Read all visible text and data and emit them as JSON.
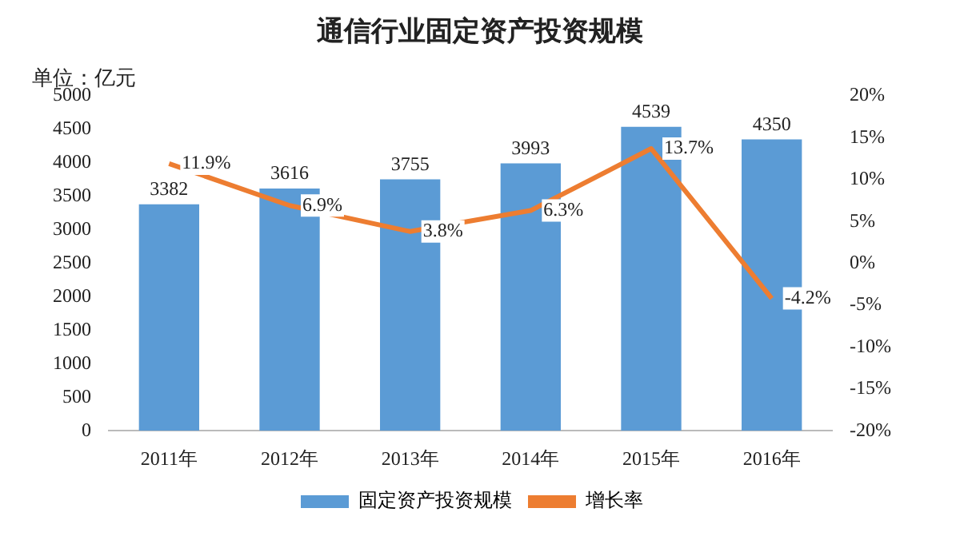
{
  "chart_data": {
    "type": "bar",
    "title": "通信行业固定资产投资规模",
    "ylabel": "单位：亿元",
    "categories": [
      "2011年",
      "2012年",
      "2013年",
      "2014年",
      "2015年",
      "2016年"
    ],
    "series": [
      {
        "name": "固定资产投资规模",
        "color": "#5b9bd5",
        "values": [
          3382,
          3616,
          3755,
          3993,
          4539,
          4350
        ],
        "value_labels": [
          "3382",
          "3616",
          "3755",
          "3993",
          "4539",
          "4350"
        ]
      },
      {
        "name": "增长率",
        "type": "line",
        "axis": "y2",
        "color": "#ed7d31",
        "values": [
          11.9,
          6.9,
          3.8,
          6.3,
          13.7,
          -4.2
        ],
        "value_labels": [
          "11.9%",
          "6.9%",
          "3.8%",
          "6.3%",
          "13.7%",
          "-4.2%"
        ]
      }
    ],
    "ylim": [
      0,
      5000
    ],
    "yticks": [
      0,
      500,
      1000,
      1500,
      2000,
      2500,
      3000,
      3500,
      4000,
      4500,
      5000
    ],
    "y2lim": [
      -20,
      20
    ],
    "y2ticks": [
      {
        "value": -20,
        "label": "-20%"
      },
      {
        "value": -15,
        "label": "-15%"
      },
      {
        "value": -10,
        "label": "-10%"
      },
      {
        "value": -5,
        "label": "-5%"
      },
      {
        "value": 0,
        "label": "0%"
      },
      {
        "value": 5,
        "label": "5%"
      },
      {
        "value": 10,
        "label": "10%"
      },
      {
        "value": 15,
        "label": "15%"
      },
      {
        "value": 20,
        "label": "20%"
      }
    ],
    "grid": false,
    "legend": "bottom",
    "marker": "none",
    "line_style": "solid"
  }
}
